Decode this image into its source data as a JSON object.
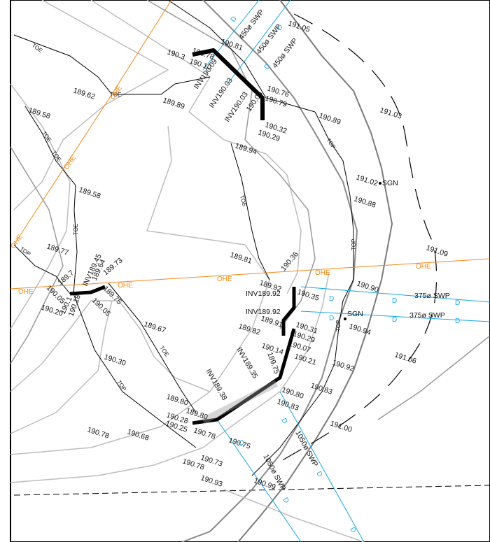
{
  "levels": [
    {
      "id": "l1",
      "text": "190.78"
    },
    {
      "id": "l2",
      "text": "190.81"
    },
    {
      "id": "l3",
      "text": "190.3"
    },
    {
      "id": "l4",
      "text": "190.10"
    },
    {
      "id": "l5",
      "text": "INV190.09"
    },
    {
      "id": "l6",
      "text": "INV190.03"
    },
    {
      "id": "l7",
      "text": "INV190.03"
    },
    {
      "id": "l8",
      "text": "190.76"
    },
    {
      "id": "l9",
      "text": "190.79"
    },
    {
      "id": "l10",
      "text": "190.05"
    },
    {
      "id": "l11",
      "text": "190.32"
    },
    {
      "id": "l12",
      "text": "190.29"
    },
    {
      "id": "l13",
      "text": "191.05"
    },
    {
      "id": "l14",
      "text": "190.89"
    },
    {
      "id": "l15",
      "text": "191.03"
    },
    {
      "id": "l16",
      "text": "189.62"
    },
    {
      "id": "l17",
      "text": "189.89"
    },
    {
      "id": "l18",
      "text": "189.58"
    },
    {
      "id": "l19",
      "text": "189.94"
    },
    {
      "id": "l20",
      "text": "189.58"
    },
    {
      "id": "l21",
      "text": "191.02"
    },
    {
      "id": "l22",
      "text": "190.88"
    },
    {
      "id": "l23",
      "text": "189.77"
    },
    {
      "id": "l24",
      "text": "INV189.45"
    },
    {
      "id": "l25",
      "text": "189.64"
    },
    {
      "id": "l26",
      "text": "189.73"
    },
    {
      "id": "l27",
      "text": "189.75"
    },
    {
      "id": "l28",
      "text": "189.7"
    },
    {
      "id": "l29",
      "text": "190.05"
    },
    {
      "id": "l30",
      "text": "190.20"
    },
    {
      "id": "l31",
      "text": "190.1"
    },
    {
      "id": "l32",
      "text": "190.18"
    },
    {
      "id": "l33",
      "text": "190.05"
    },
    {
      "id": "l34",
      "text": "189.81"
    },
    {
      "id": "l35",
      "text": "190.36"
    },
    {
      "id": "l36",
      "text": "191.09"
    },
    {
      "id": "l37",
      "text": "190.90"
    },
    {
      "id": "l38",
      "text": "189.92"
    },
    {
      "id": "l39",
      "text": "INV189.92"
    },
    {
      "id": "l40",
      "text": "190.35"
    },
    {
      "id": "l41",
      "text": "INV189.92"
    },
    {
      "id": "l42",
      "text": "189.91"
    },
    {
      "id": "l43",
      "text": "190.94"
    },
    {
      "id": "l44",
      "text": "189.67"
    },
    {
      "id": "l45",
      "text": "189.82"
    },
    {
      "id": "l46",
      "text": "190.31"
    },
    {
      "id": "l47",
      "text": "190.29"
    },
    {
      "id": "l48",
      "text": "190.14"
    },
    {
      "id": "l49",
      "text": "190.07"
    },
    {
      "id": "l50",
      "text": "190.21"
    },
    {
      "id": "l51",
      "text": "191.06"
    },
    {
      "id": "l52",
      "text": "190.30"
    },
    {
      "id": "l53",
      "text": "189.75"
    },
    {
      "id": "l54",
      "text": "INV189.35"
    },
    {
      "id": "l55",
      "text": "190.92"
    },
    {
      "id": "l56",
      "text": "190.80"
    },
    {
      "id": "l57",
      "text": "190.83"
    },
    {
      "id": "l58",
      "text": "190.83"
    },
    {
      "id": "l59",
      "text": "INV189.38"
    },
    {
      "id": "l60",
      "text": "189.80"
    },
    {
      "id": "l61",
      "text": "189.80"
    },
    {
      "id": "l62",
      "text": "190.28"
    },
    {
      "id": "l63",
      "text": "190.25"
    },
    {
      "id": "l64",
      "text": "190.78"
    },
    {
      "id": "l65",
      "text": "191.00"
    },
    {
      "id": "l66",
      "text": "190.78"
    },
    {
      "id": "l67",
      "text": "190.68"
    },
    {
      "id": "l68",
      "text": "190.75"
    },
    {
      "id": "l69",
      "text": "190.73"
    },
    {
      "id": "l70",
      "text": "190.78"
    },
    {
      "id": "l71",
      "text": "190.93"
    },
    {
      "id": "l72",
      "text": "190.99"
    }
  ],
  "tags": {
    "toe": "TOE",
    "top": "TOP",
    "sgn": "SGN"
  },
  "services": {
    "ohe": "OHE",
    "d": "D",
    "swp450": "450ø SWP",
    "swp375": "375ø SWP",
    "swp1050": "1050ø SWP"
  }
}
